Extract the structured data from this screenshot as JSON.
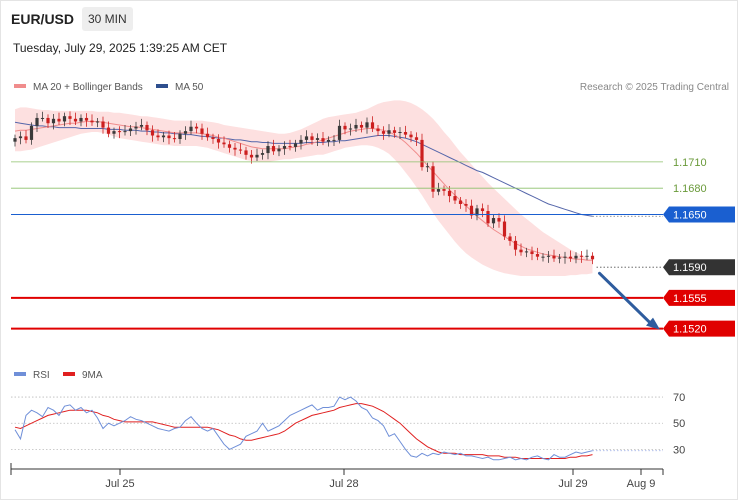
{
  "header": {
    "symbol": "EUR/USD",
    "timeframe": "30 MIN",
    "datetime": "Tuesday, July 29, 2025 1:39:25 AM CET"
  },
  "legend": {
    "ma20_label": "MA 20 + Bollinger Bands",
    "ma50_label": "MA 50",
    "copyright": "Research © 2025 Trading Central",
    "rsi_label": "RSI",
    "rsi_ma_label": "9MA"
  },
  "colors": {
    "candle_up": "#3a3a3a",
    "candle_down": "#cc1f1f",
    "bollinger_fill": "#fde0e0",
    "ma20": "#f08c8c",
    "ma50": "#5566aa",
    "support": "#e00000",
    "resistance_green": "#8cc06a",
    "pivot_blue": "#1a5fd0",
    "current_price": "#333333",
    "rsi": "#6f8fd8",
    "rsi_ma": "#e02020",
    "arrow": "#2e5c9e"
  },
  "chart_data": [
    {
      "type": "candlestick",
      "title": "EUR/USD 30 MIN",
      "x_ticks": [
        "Jul 25",
        "Jul 28",
        "Jul 29",
        "Aug 9"
      ],
      "y_range": [
        1.149,
        1.1785
      ],
      "price_levels": [
        {
          "value": 1.171,
          "label": "1.1710",
          "role": "resistance"
        },
        {
          "value": 1.168,
          "label": "1.1680",
          "role": "resistance"
        },
        {
          "value": 1.165,
          "label": "1.1650",
          "role": "pivot"
        },
        {
          "value": 1.159,
          "label": "1.1590",
          "role": "current"
        },
        {
          "value": 1.1555,
          "label": "1.1555",
          "role": "support"
        },
        {
          "value": 1.152,
          "label": "1.1520",
          "role": "support"
        }
      ],
      "forecast_arrow": {
        "from": 1.1583,
        "to": 1.152
      },
      "series": [
        {
          "name": "MA 20 + Bollinger Bands",
          "type": "line"
        },
        {
          "name": "MA 50",
          "type": "line"
        }
      ],
      "close": [
        1.1737,
        1.1739,
        1.1735,
        1.1751,
        1.176,
        1.176,
        1.1754,
        1.1759,
        1.1756,
        1.1762,
        1.1759,
        1.1756,
        1.176,
        1.1757,
        1.1755,
        1.1756,
        1.1749,
        1.1742,
        1.1745,
        1.1744,
        1.1745,
        1.1748,
        1.175,
        1.1752,
        1.1746,
        1.174,
        1.1738,
        1.174,
        1.1737,
        1.1736,
        1.1742,
        1.1745,
        1.175,
        1.1748,
        1.1742,
        1.1738,
        1.1736,
        1.1732,
        1.173,
        1.1726,
        1.1724,
        1.1723,
        1.1718,
        1.1715,
        1.1718,
        1.172,
        1.1728,
        1.1722,
        1.1725,
        1.1728,
        1.1727,
        1.1731,
        1.1735,
        1.1739,
        1.1735,
        1.1737,
        1.1733,
        1.1735,
        1.1735,
        1.1751,
        1.1747,
        1.1748,
        1.1752,
        1.1749,
        1.1755,
        1.1748,
        1.1745,
        1.1742,
        1.1746,
        1.1743,
        1.1744,
        1.1741,
        1.1738,
        1.1735,
        1.1704,
        1.1705,
        1.1676,
        1.1679,
        1.1677,
        1.1671,
        1.1666,
        1.1662,
        1.166,
        1.1649,
        1.1657,
        1.1654,
        1.164,
        1.1646,
        1.1642,
        1.1625,
        1.162,
        1.161,
        1.1607,
        1.1608,
        1.1605,
        1.1602,
        1.1602,
        1.1603,
        1.16,
        1.1601,
        1.1602,
        1.16,
        1.1603,
        1.1602,
        1.1603,
        1.1599
      ],
      "ma20": [
        1.1745,
        1.1746,
        1.1746,
        1.1747,
        1.1748,
        1.1749,
        1.175,
        1.1751,
        1.1752,
        1.1753,
        1.1754,
        1.1754,
        1.1755,
        1.1756,
        1.1756,
        1.1756,
        1.1755,
        1.1754,
        1.1753,
        1.1752,
        1.1751,
        1.175,
        1.175,
        1.1749,
        1.1748,
        1.1747,
        1.1746,
        1.1745,
        1.1744,
        1.1743,
        1.1743,
        1.1743,
        1.1743,
        1.1743,
        1.1742,
        1.1741,
        1.174,
        1.1738,
        1.1737,
        1.1735,
        1.1733,
        1.1731,
        1.1729,
        1.1727,
        1.1726,
        1.1725,
        1.1725,
        1.1725,
        1.1725,
        1.1725,
        1.1726,
        1.1727,
        1.1728,
        1.173,
        1.1731,
        1.1733,
        1.1735,
        1.1737,
        1.1739,
        1.1741,
        1.1743,
        1.1745,
        1.1746,
        1.1747,
        1.1748,
        1.1748,
        1.1747,
        1.1746,
        1.1744,
        1.1741,
        1.1737,
        1.1732,
        1.1726,
        1.172,
        1.1713,
        1.1706,
        1.1699,
        1.1692,
        1.1685,
        1.1678,
        1.1672,
        1.1666,
        1.166,
        1.1654,
        1.1648,
        1.1643,
        1.1638,
        1.1633,
        1.1629,
        1.1625,
        1.1621,
        1.1617,
        1.1614,
        1.1611,
        1.1609,
        1.1607,
        1.1605,
        1.1604,
        1.1603,
        1.1602,
        1.1601,
        1.16,
        1.1599,
        1.1599,
        1.1598,
        1.1598
      ],
      "bb_upper": [
        1.177,
        1.1772,
        1.1772,
        1.1771,
        1.177,
        1.1769,
        1.1769,
        1.1768,
        1.1768,
        1.1768,
        1.1768,
        1.1768,
        1.1768,
        1.1768,
        1.1768,
        1.1767,
        1.1767,
        1.1767,
        1.1766,
        1.1766,
        1.1765,
        1.1764,
        1.1763,
        1.1762,
        1.1762,
        1.1761,
        1.176,
        1.1759,
        1.1758,
        1.1757,
        1.1757,
        1.1757,
        1.1757,
        1.1757,
        1.1757,
        1.1756,
        1.1755,
        1.1754,
        1.1752,
        1.1751,
        1.175,
        1.1749,
        1.1748,
        1.1747,
        1.1746,
        1.1745,
        1.1744,
        1.1743,
        1.1742,
        1.1742,
        1.1743,
        1.1745,
        1.1747,
        1.175,
        1.1753,
        1.1756,
        1.1759,
        1.1761,
        1.1762,
        1.1763,
        1.1764,
        1.1765,
        1.1766,
        1.1768,
        1.177,
        1.1773,
        1.1776,
        1.1778,
        1.1779,
        1.178,
        1.178,
        1.1779,
        1.1777,
        1.1774,
        1.177,
        1.1765,
        1.1759,
        1.1752,
        1.1744,
        1.1737,
        1.1729,
        1.1721,
        1.1714,
        1.1707,
        1.17,
        1.1693,
        1.1686,
        1.168,
        1.1674,
        1.1668,
        1.1662,
        1.1656,
        1.165,
        1.1645,
        1.164,
        1.1635,
        1.163,
        1.1626,
        1.1622,
        1.1618,
        1.1614,
        1.161,
        1.1607,
        1.1604,
        1.1601,
        1.1598
      ],
      "bb_lower": [
        1.1722,
        1.1722,
        1.1723,
        1.1724,
        1.1726,
        1.1728,
        1.173,
        1.1732,
        1.1734,
        1.1736,
        1.1738,
        1.174,
        1.1742,
        1.1743,
        1.1744,
        1.1744,
        1.1743,
        1.1741,
        1.1739,
        1.1737,
        1.1736,
        1.1735,
        1.1734,
        1.1733,
        1.1732,
        1.1731,
        1.173,
        1.1729,
        1.1729,
        1.1728,
        1.1728,
        1.1728,
        1.1728,
        1.1728,
        1.1727,
        1.1726,
        1.1724,
        1.1722,
        1.172,
        1.1718,
        1.1716,
        1.1714,
        1.1712,
        1.1711,
        1.171,
        1.171,
        1.171,
        1.1711,
        1.1712,
        1.1713,
        1.1713,
        1.1714,
        1.1715,
        1.1716,
        1.1717,
        1.1718,
        1.1718,
        1.172,
        1.1722,
        1.1724,
        1.1726,
        1.1727,
        1.1728,
        1.1729,
        1.1729,
        1.1728,
        1.1726,
        1.1723,
        1.1719,
        1.1713,
        1.1706,
        1.1698,
        1.169,
        1.1681,
        1.1672,
        1.1662,
        1.1652,
        1.1643,
        1.1635,
        1.1627,
        1.1619,
        1.1612,
        1.1606,
        1.1601,
        1.1597,
        1.1593,
        1.159,
        1.1587,
        1.1585,
        1.1583,
        1.1582,
        1.1581,
        1.158,
        1.158,
        1.158,
        1.158,
        1.158,
        1.158,
        1.158,
        1.158,
        1.158,
        1.1581,
        1.1581,
        1.1582,
        1.1582,
        1.1583
      ],
      "ma50": [
        1.1755,
        1.1754,
        1.1753,
        1.1752,
        1.1751,
        1.1751,
        1.175,
        1.175,
        1.1749,
        1.1749,
        1.1749,
        1.1749,
        1.1748,
        1.1748,
        1.1748,
        1.1748,
        1.1748,
        1.1747,
        1.1747,
        1.1747,
        1.1746,
        1.1746,
        1.1746,
        1.1745,
        1.1745,
        1.1744,
        1.1744,
        1.1743,
        1.1743,
        1.1742,
        1.1742,
        1.1741,
        1.1741,
        1.174,
        1.1739,
        1.1739,
        1.1738,
        1.1737,
        1.1737,
        1.1736,
        1.1735,
        1.1735,
        1.1734,
        1.1733,
        1.1733,
        1.1732,
        1.1732,
        1.1731,
        1.1731,
        1.1731,
        1.1731,
        1.1731,
        1.1731,
        1.1732,
        1.1732,
        1.1732,
        1.1732,
        1.1733,
        1.1733,
        1.1734,
        1.1734,
        1.1735,
        1.1736,
        1.1737,
        1.1738,
        1.1739,
        1.174,
        1.174,
        1.174,
        1.1739,
        1.1738,
        1.1737,
        1.1735,
        1.1733,
        1.173,
        1.1727,
        1.1724,
        1.1721,
        1.1718,
        1.1715,
        1.1712,
        1.1709,
        1.1706,
        1.1703,
        1.17,
        1.1698,
        1.1695,
        1.1692,
        1.1689,
        1.1686,
        1.1683,
        1.168,
        1.1677,
        1.1674,
        1.1671,
        1.1668,
        1.1665,
        1.1662,
        1.166,
        1.1658,
        1.1656,
        1.1654,
        1.1652,
        1.165,
        1.1649,
        1.1648
      ]
    },
    {
      "type": "line",
      "title": "RSI",
      "y_ticks": [
        70,
        50,
        30
      ],
      "y_range": [
        15,
        80
      ],
      "series": [
        {
          "name": "RSI",
          "values": [
            45,
            38,
            56,
            60,
            58,
            55,
            62,
            60,
            56,
            63,
            64,
            60,
            62,
            58,
            60,
            54,
            46,
            50,
            48,
            50,
            52,
            55,
            53,
            52,
            50,
            48,
            46,
            45,
            44,
            46,
            47,
            52,
            55,
            50,
            46,
            44,
            46,
            40,
            34,
            30,
            32,
            34,
            40,
            42,
            44,
            50,
            44,
            46,
            48,
            52,
            56,
            58,
            60,
            62,
            64,
            60,
            62,
            62,
            63,
            70,
            68,
            70,
            67,
            62,
            60,
            54,
            52,
            48,
            40,
            42,
            36,
            30,
            25,
            24,
            27,
            25,
            27,
            26,
            28,
            27,
            26,
            27,
            25,
            25,
            24,
            23,
            24,
            22,
            22,
            23,
            24,
            22,
            23,
            22,
            24,
            25,
            23,
            22,
            26,
            24,
            24,
            26,
            28,
            27,
            28,
            29
          ]
        },
        {
          "name": "9MA",
          "values": [
            47,
            46,
            48,
            50,
            52,
            54,
            56,
            57,
            58,
            59,
            60,
            60,
            60,
            60,
            59,
            58,
            56,
            55,
            53,
            52,
            51,
            51,
            51,
            51,
            51,
            51,
            50,
            49,
            48,
            47,
            47,
            47,
            47,
            47,
            47,
            47,
            46,
            45,
            43,
            41,
            40,
            38,
            37,
            37,
            38,
            39,
            40,
            41,
            42,
            44,
            47,
            50,
            52,
            54,
            56,
            57,
            58,
            59,
            60,
            62,
            63,
            64,
            65,
            65,
            64,
            63,
            61,
            59,
            56,
            53,
            50,
            46,
            42,
            38,
            35,
            32,
            30,
            28,
            27,
            27,
            27,
            26,
            26,
            26,
            26,
            26,
            25,
            25,
            25,
            24,
            24,
            24,
            23,
            23,
            23,
            23,
            23,
            23,
            23,
            23,
            23,
            24,
            24,
            25,
            25,
            26
          ]
        }
      ]
    }
  ]
}
